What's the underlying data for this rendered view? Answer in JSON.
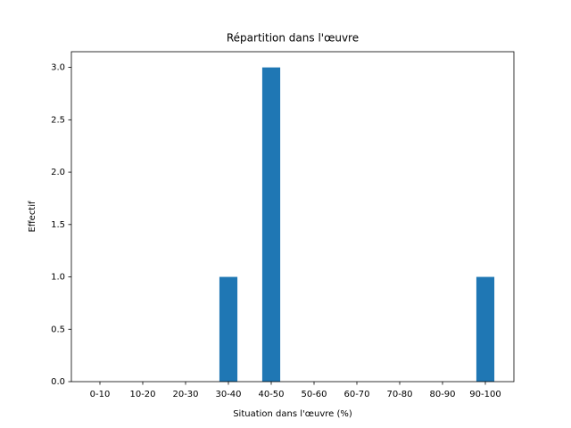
{
  "chart_data": {
    "type": "bar",
    "title": "Répartition dans l'œuvre",
    "xlabel": "Situation dans l'œuvre (%)",
    "ylabel": "Effectif",
    "categories": [
      "0-10",
      "10-20",
      "20-30",
      "30-40",
      "40-50",
      "50-60",
      "60-70",
      "70-80",
      "80-90",
      "90-100"
    ],
    "values": [
      0,
      0,
      0,
      1,
      3,
      0,
      0,
      0,
      0,
      1
    ],
    "color": "#1f77b4",
    "ylim": [
      0,
      3.15
    ],
    "yticks": [
      {
        "value": 0,
        "label": "0.0"
      },
      0.5,
      {
        "value": 1,
        "label": "1.0"
      },
      1.5,
      {
        "value": 2,
        "label": "2.0"
      },
      2.5,
      {
        "value": 3,
        "label": "3.0"
      }
    ],
    "grid": false
  }
}
